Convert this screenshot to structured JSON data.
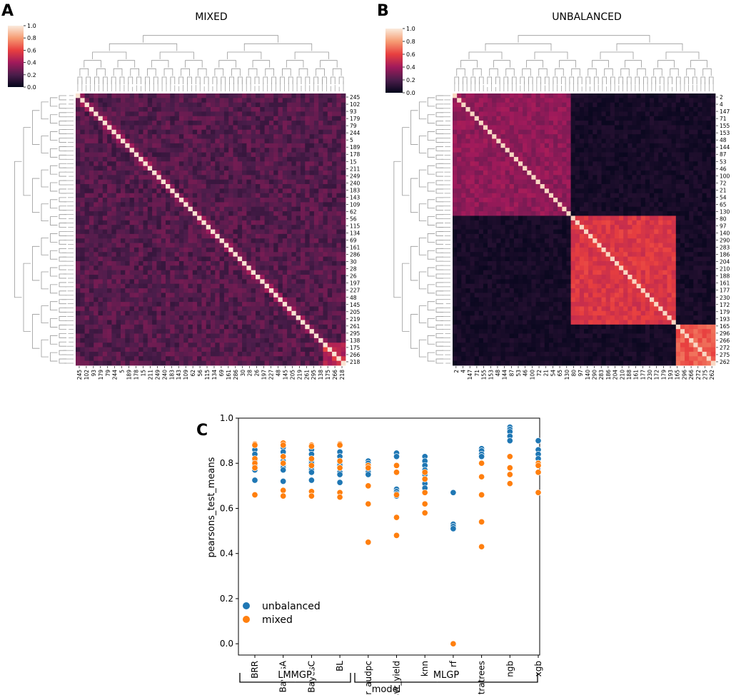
{
  "panels": {
    "a": {
      "letter": "A",
      "title": "MIXED",
      "colorbar_ticks": [
        "1.0",
        "0.8",
        "0.6",
        "0.4",
        "0.2",
        "0.0"
      ],
      "row_labels": [
        "245",
        "102",
        "93",
        "179",
        "79",
        "244",
        "5",
        "189",
        "178",
        "15",
        "211",
        "249",
        "240",
        "183",
        "143",
        "109",
        "62",
        "56",
        "115",
        "134",
        "69",
        "161",
        "286",
        "30",
        "28",
        "26",
        "197",
        "227",
        "48",
        "145",
        "205",
        "219",
        "261",
        "295",
        "138",
        "175",
        "266",
        "218"
      ],
      "col_labels": [
        "245",
        "102",
        "93",
        "179",
        "79",
        "244",
        "5",
        "189",
        "178",
        "15",
        "211",
        "249",
        "240",
        "183",
        "143",
        "109",
        "62",
        "56",
        "115",
        "134",
        "69",
        "161",
        "286",
        "30",
        "28",
        "26",
        "197",
        "227",
        "48",
        "145",
        "205",
        "219",
        "261",
        "295",
        "138",
        "175",
        "266",
        "218"
      ]
    },
    "b": {
      "letter": "B",
      "title": "UNBALANCED",
      "colorbar_ticks": [
        "1.0",
        "0.8",
        "0.6",
        "0.4",
        "0.2",
        "0.0"
      ],
      "row_labels": [
        "2",
        "4",
        "147",
        "71",
        "155",
        "153",
        "48",
        "144",
        "87",
        "53",
        "46",
        "100",
        "72",
        "21",
        "54",
        "65",
        "130",
        "80",
        "97",
        "140",
        "290",
        "283",
        "186",
        "204",
        "210",
        "188",
        "161",
        "177",
        "230",
        "172",
        "179",
        "193",
        "165",
        "296",
        "266",
        "272",
        "275",
        "262"
      ],
      "col_labels": [
        "2",
        "4",
        "147",
        "71",
        "155",
        "153",
        "48",
        "144",
        "87",
        "53",
        "46",
        "100",
        "72",
        "21",
        "54",
        "65",
        "130",
        "80",
        "97",
        "140",
        "290",
        "283",
        "186",
        "204",
        "210",
        "188",
        "161",
        "177",
        "230",
        "172",
        "179",
        "193",
        "165",
        "296",
        "266",
        "272",
        "275",
        "262"
      ]
    },
    "c": {
      "letter": "C",
      "group_labels": [
        "LMMGP",
        "MLGP"
      ]
    }
  },
  "chart_data": [
    {
      "type": "heatmap",
      "title": "MIXED",
      "colorscale": [
        "#03051a",
        "#4c1d4b",
        "#a11a5b",
        "#e83f3f",
        "#f69c73",
        "#faebdd"
      ],
      "value_range": [
        0,
        1
      ],
      "pattern": "weak correlations (~0.1-0.3) with diagonal = 1.0"
    },
    {
      "type": "heatmap",
      "title": "UNBALANCED",
      "colorscale": [
        "#03051a",
        "#4c1d4b",
        "#a11a5b",
        "#e83f3f",
        "#f69c73",
        "#faebdd"
      ],
      "value_range": [
        0,
        1
      ],
      "pattern": "three diagonal blocks; off-block values near 0.05"
    },
    {
      "type": "scatter",
      "title": "",
      "xlabel": "model",
      "ylabel": "pearsons_test_means",
      "ylim": [
        -0.05,
        1.0
      ],
      "yticks": [
        "0.0",
        "0.2",
        "0.4",
        "0.6",
        "0.8",
        "1.0"
      ],
      "categories": [
        "BRR",
        "BayesA",
        "BayesC",
        "BL",
        "svr_audpc",
        "svr_yield",
        "knn",
        "rf",
        "extratrees",
        "ngb",
        "xgb"
      ],
      "legend": [
        "unbalanced",
        "mixed"
      ],
      "legend_position": "lower-left",
      "series": [
        {
          "name": "unbalanced",
          "color": "#1f77b4",
          "values": [
            [
              0.86,
              0.84,
              0.82,
              0.81,
              0.8,
              0.79,
              0.78,
              0.77,
              0.725
            ],
            [
              0.87,
              0.85,
              0.83,
              0.81,
              0.8,
              0.79,
              0.78,
              0.77,
              0.72
            ],
            [
              0.86,
              0.84,
              0.82,
              0.81,
              0.8,
              0.78,
              0.77,
              0.76,
              0.725
            ],
            [
              0.85,
              0.83,
              0.81,
              0.8,
              0.79,
              0.78,
              0.76,
              0.75,
              0.715
            ],
            [
              0.81,
              0.8,
              0.79,
              0.78,
              0.77,
              0.76,
              0.75
            ],
            [
              0.845,
              0.83,
              0.685,
              0.675,
              0.665,
              0.655
            ],
            [
              0.83,
              0.81,
              0.79,
              0.77,
              0.75,
              0.73,
              0.71,
              0.69
            ],
            [
              0.67,
              0.53,
              0.52,
              0.51
            ],
            [
              0.865,
              0.855,
              0.84,
              0.83
            ],
            [
              0.96,
              0.95,
              0.94,
              0.92,
              0.9
            ],
            [
              0.9,
              0.86,
              0.84,
              0.82,
              0.8
            ]
          ]
        },
        {
          "name": "mixed",
          "color": "#ff7f0e",
          "values": [
            [
              0.885,
              0.88,
              0.82,
              0.8,
              0.78,
              0.66
            ],
            [
              0.89,
              0.88,
              0.83,
              0.8,
              0.68,
              0.655
            ],
            [
              0.88,
              0.875,
              0.82,
              0.79,
              0.675,
              0.655
            ],
            [
              0.885,
              0.88,
              0.81,
              0.78,
              0.67,
              0.65
            ],
            [
              0.79,
              0.78,
              0.7,
              0.62,
              0.45
            ],
            [
              0.79,
              0.76,
              0.66,
              0.56,
              0.48
            ],
            [
              0.76,
              0.73,
              0.67,
              0.62,
              0.58
            ],
            [
              0.0
            ],
            [
              0.8,
              0.74,
              0.66,
              0.54,
              0.43
            ],
            [
              0.83,
              0.78,
              0.75,
              0.71
            ],
            [
              0.8,
              0.79,
              0.76,
              0.67
            ]
          ]
        }
      ]
    }
  ]
}
